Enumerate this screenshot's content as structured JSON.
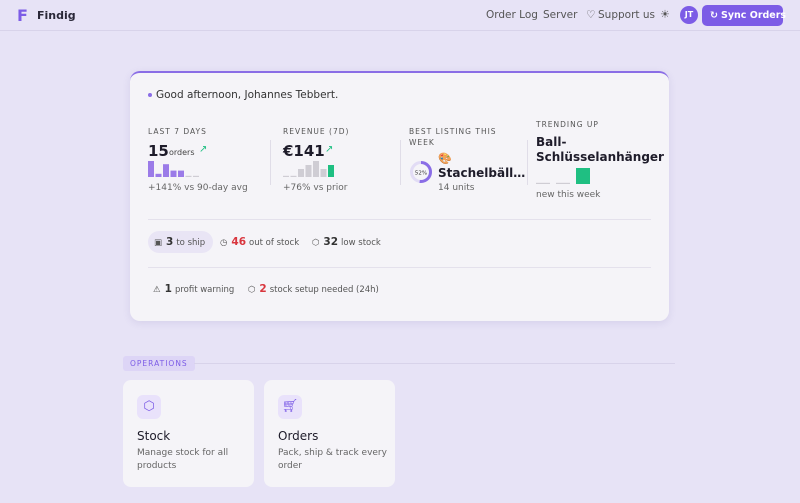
{
  "nav": {
    "brand": "Findig",
    "links": [
      "Order Log",
      "Server",
      "Support us"
    ],
    "avatar": "JT",
    "action": "Sync Orders"
  },
  "summary": {
    "greeting": "Good afternoon, Johannes Tebbert.",
    "stats": [
      {
        "label": "LAST 7 DAYS",
        "value": "15",
        "unit": "orders",
        "note": "+141% vs 90-day avg",
        "bars": [
          5,
          1,
          4,
          2,
          2,
          0,
          0
        ],
        "bar_color": "#9b7be8",
        "last_color": "#9b7be8"
      },
      {
        "label": "REVENUE (7D)",
        "value": "€141",
        "note": "+76% vs prior",
        "bars": [
          0,
          0,
          2,
          3,
          4,
          2,
          3
        ],
        "bar_color": "#cfcdd4",
        "last_color": "#1fbf82"
      },
      {
        "label": "BEST LISTING THIS WEEK",
        "ring": {
          "value": 52,
          "label": "52%"
        },
        "icon": "🎨",
        "value": "Stachelbäll…",
        "note": "14 units"
      },
      {
        "label": "TRENDING UP",
        "value": "Ball-Schlüsselanhänger",
        "note": "new this week",
        "bars": [
          0,
          0,
          3
        ],
        "bar_color": "#cfcdd4",
        "last_color": "#1fbf82"
      }
    ],
    "alerts": [
      {
        "count": "3",
        "text": "to ship"
      },
      {
        "count": "46",
        "text": "out of stock"
      },
      {
        "count": "32",
        "text": "low stock"
      }
    ],
    "warnings": [
      {
        "count": "1",
        "text": "profit warning"
      },
      {
        "count": "2",
        "text": "stock setup needed (24h)"
      }
    ]
  },
  "operations": {
    "label": "OPERATIONS",
    "cards": [
      {
        "title": "Stock",
        "desc": "Manage stock for all products"
      },
      {
        "title": "Orders",
        "desc": "Pack, ship & track every order"
      }
    ]
  }
}
